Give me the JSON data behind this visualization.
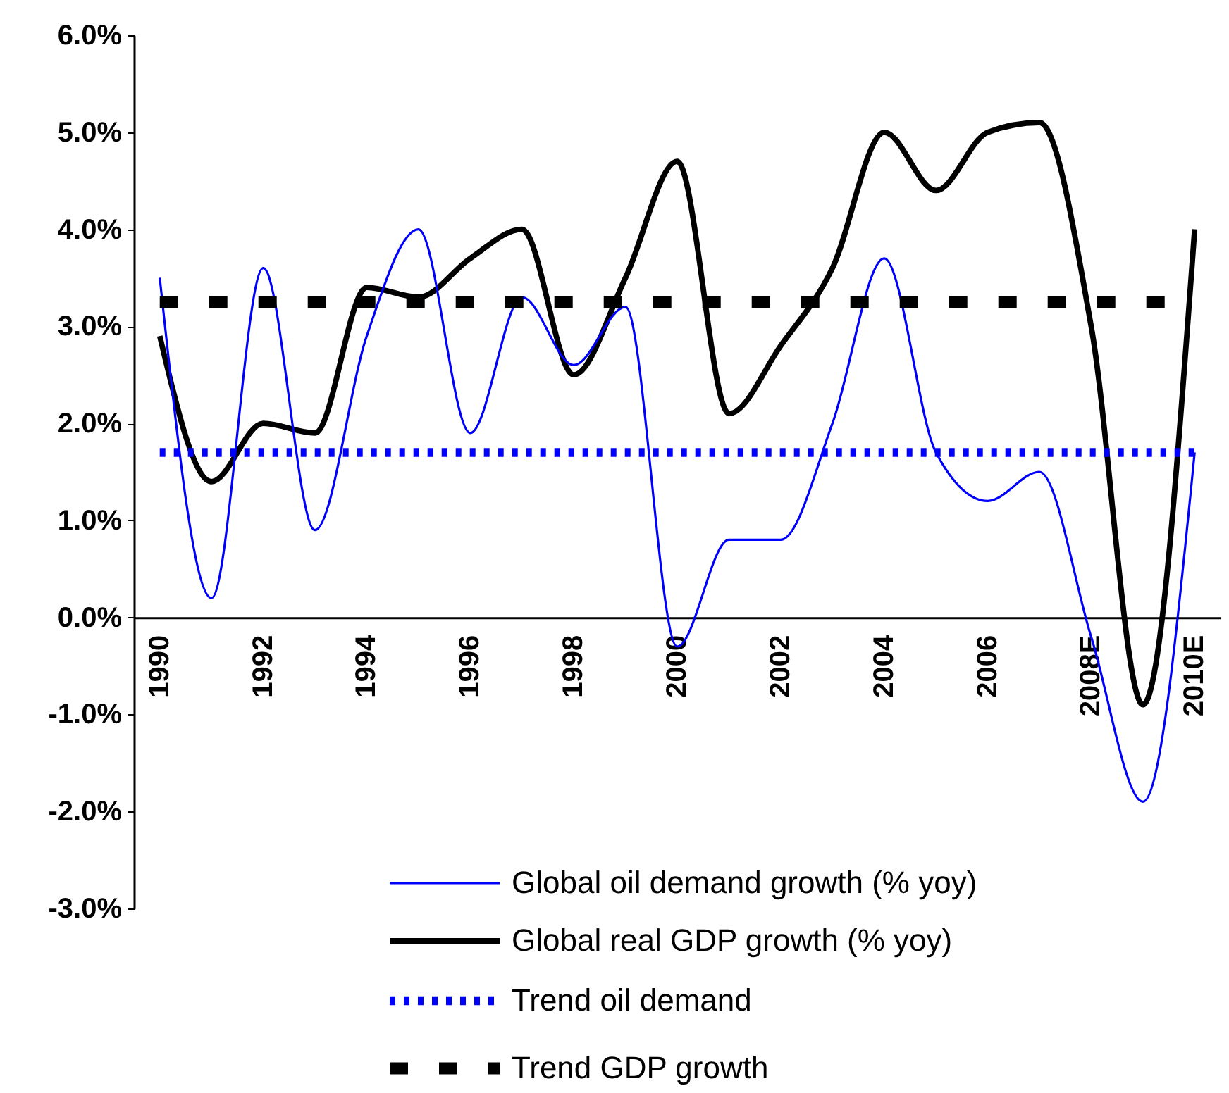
{
  "chart_data": {
    "type": "line",
    "categories": [
      "1990",
      null,
      "1992",
      null,
      "1994",
      null,
      "1996",
      null,
      "1998",
      null,
      "2000",
      null,
      "2002",
      null,
      "2004",
      null,
      "2006",
      null,
      "2008E",
      null,
      "2010E"
    ],
    "series": [
      {
        "name": "Global oil demand growth (% yoy)",
        "color": "#0000ff",
        "line_style": "solid",
        "values": [
          3.5,
          0.2,
          3.6,
          0.9,
          2.9,
          4.0,
          1.9,
          3.3,
          2.6,
          3.2,
          -0.3,
          0.8,
          0.8,
          2.0,
          3.7,
          1.7,
          1.2,
          1.5,
          -0.2,
          -1.9,
          1.7
        ]
      },
      {
        "name": "Global real GDP growth (% yoy)",
        "color": "#000000",
        "line_style": "solid",
        "values": [
          2.9,
          1.4,
          2.0,
          1.9,
          3.4,
          3.3,
          3.7,
          4.0,
          2.5,
          3.5,
          4.7,
          2.1,
          2.8,
          3.6,
          5.0,
          4.4,
          5.0,
          5.1,
          3.0,
          -0.9,
          4.0
        ]
      },
      {
        "name": "Trend oil demand",
        "color": "#0000ff",
        "line_style": "dotted",
        "values": [
          1.7,
          1.7,
          1.7,
          1.7,
          1.7,
          1.7,
          1.7,
          1.7,
          1.7,
          1.7,
          1.7,
          1.7,
          1.7,
          1.7,
          1.7,
          1.7,
          1.7,
          1.7,
          1.7,
          1.7,
          1.7
        ]
      },
      {
        "name": "Trend GDP growth",
        "color": "#000000",
        "line_style": "dashed",
        "values": [
          3.25,
          3.25,
          3.25,
          3.25,
          3.25,
          3.25,
          3.25,
          3.25,
          3.25,
          3.25,
          3.25,
          3.25,
          3.25,
          3.25,
          3.25,
          3.25,
          3.25,
          3.25,
          3.25,
          3.25,
          3.25
        ]
      }
    ],
    "ylim": [
      -3,
      6
    ],
    "yticks": [
      {
        "value": -3,
        "label": "-3.0%"
      },
      {
        "value": -2,
        "label": "-2.0%"
      },
      {
        "value": -1,
        "label": "-1.0%"
      },
      {
        "value": 0,
        "label": "0.0%"
      },
      {
        "value": 1,
        "label": "1.0%"
      },
      {
        "value": 2,
        "label": "2.0%"
      },
      {
        "value": 3,
        "label": "3.0%"
      },
      {
        "value": 4,
        "label": "4.0%"
      },
      {
        "value": 5,
        "label": "5.0%"
      },
      {
        "value": 6,
        "label": "6.0%"
      }
    ],
    "grid": false,
    "legend": "bottom"
  }
}
